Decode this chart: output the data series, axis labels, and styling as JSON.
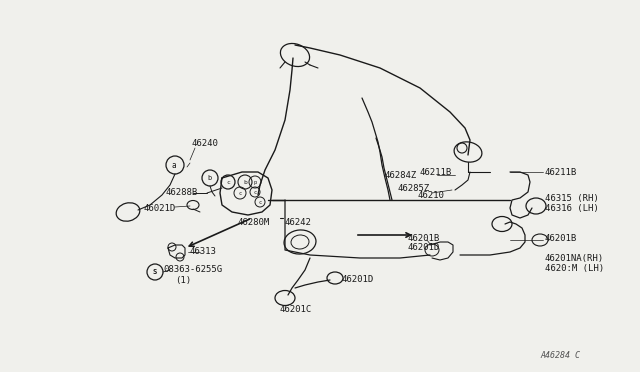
{
  "bg_color": "#f0f0ec",
  "line_color": "#1a1a1a",
  "text_color": "#1a1a1a",
  "figsize": [
    6.4,
    3.72
  ],
  "dpi": 100,
  "watermark": "A46284 C",
  "xlim": [
    0,
    640
  ],
  "ylim": [
    0,
    372
  ]
}
